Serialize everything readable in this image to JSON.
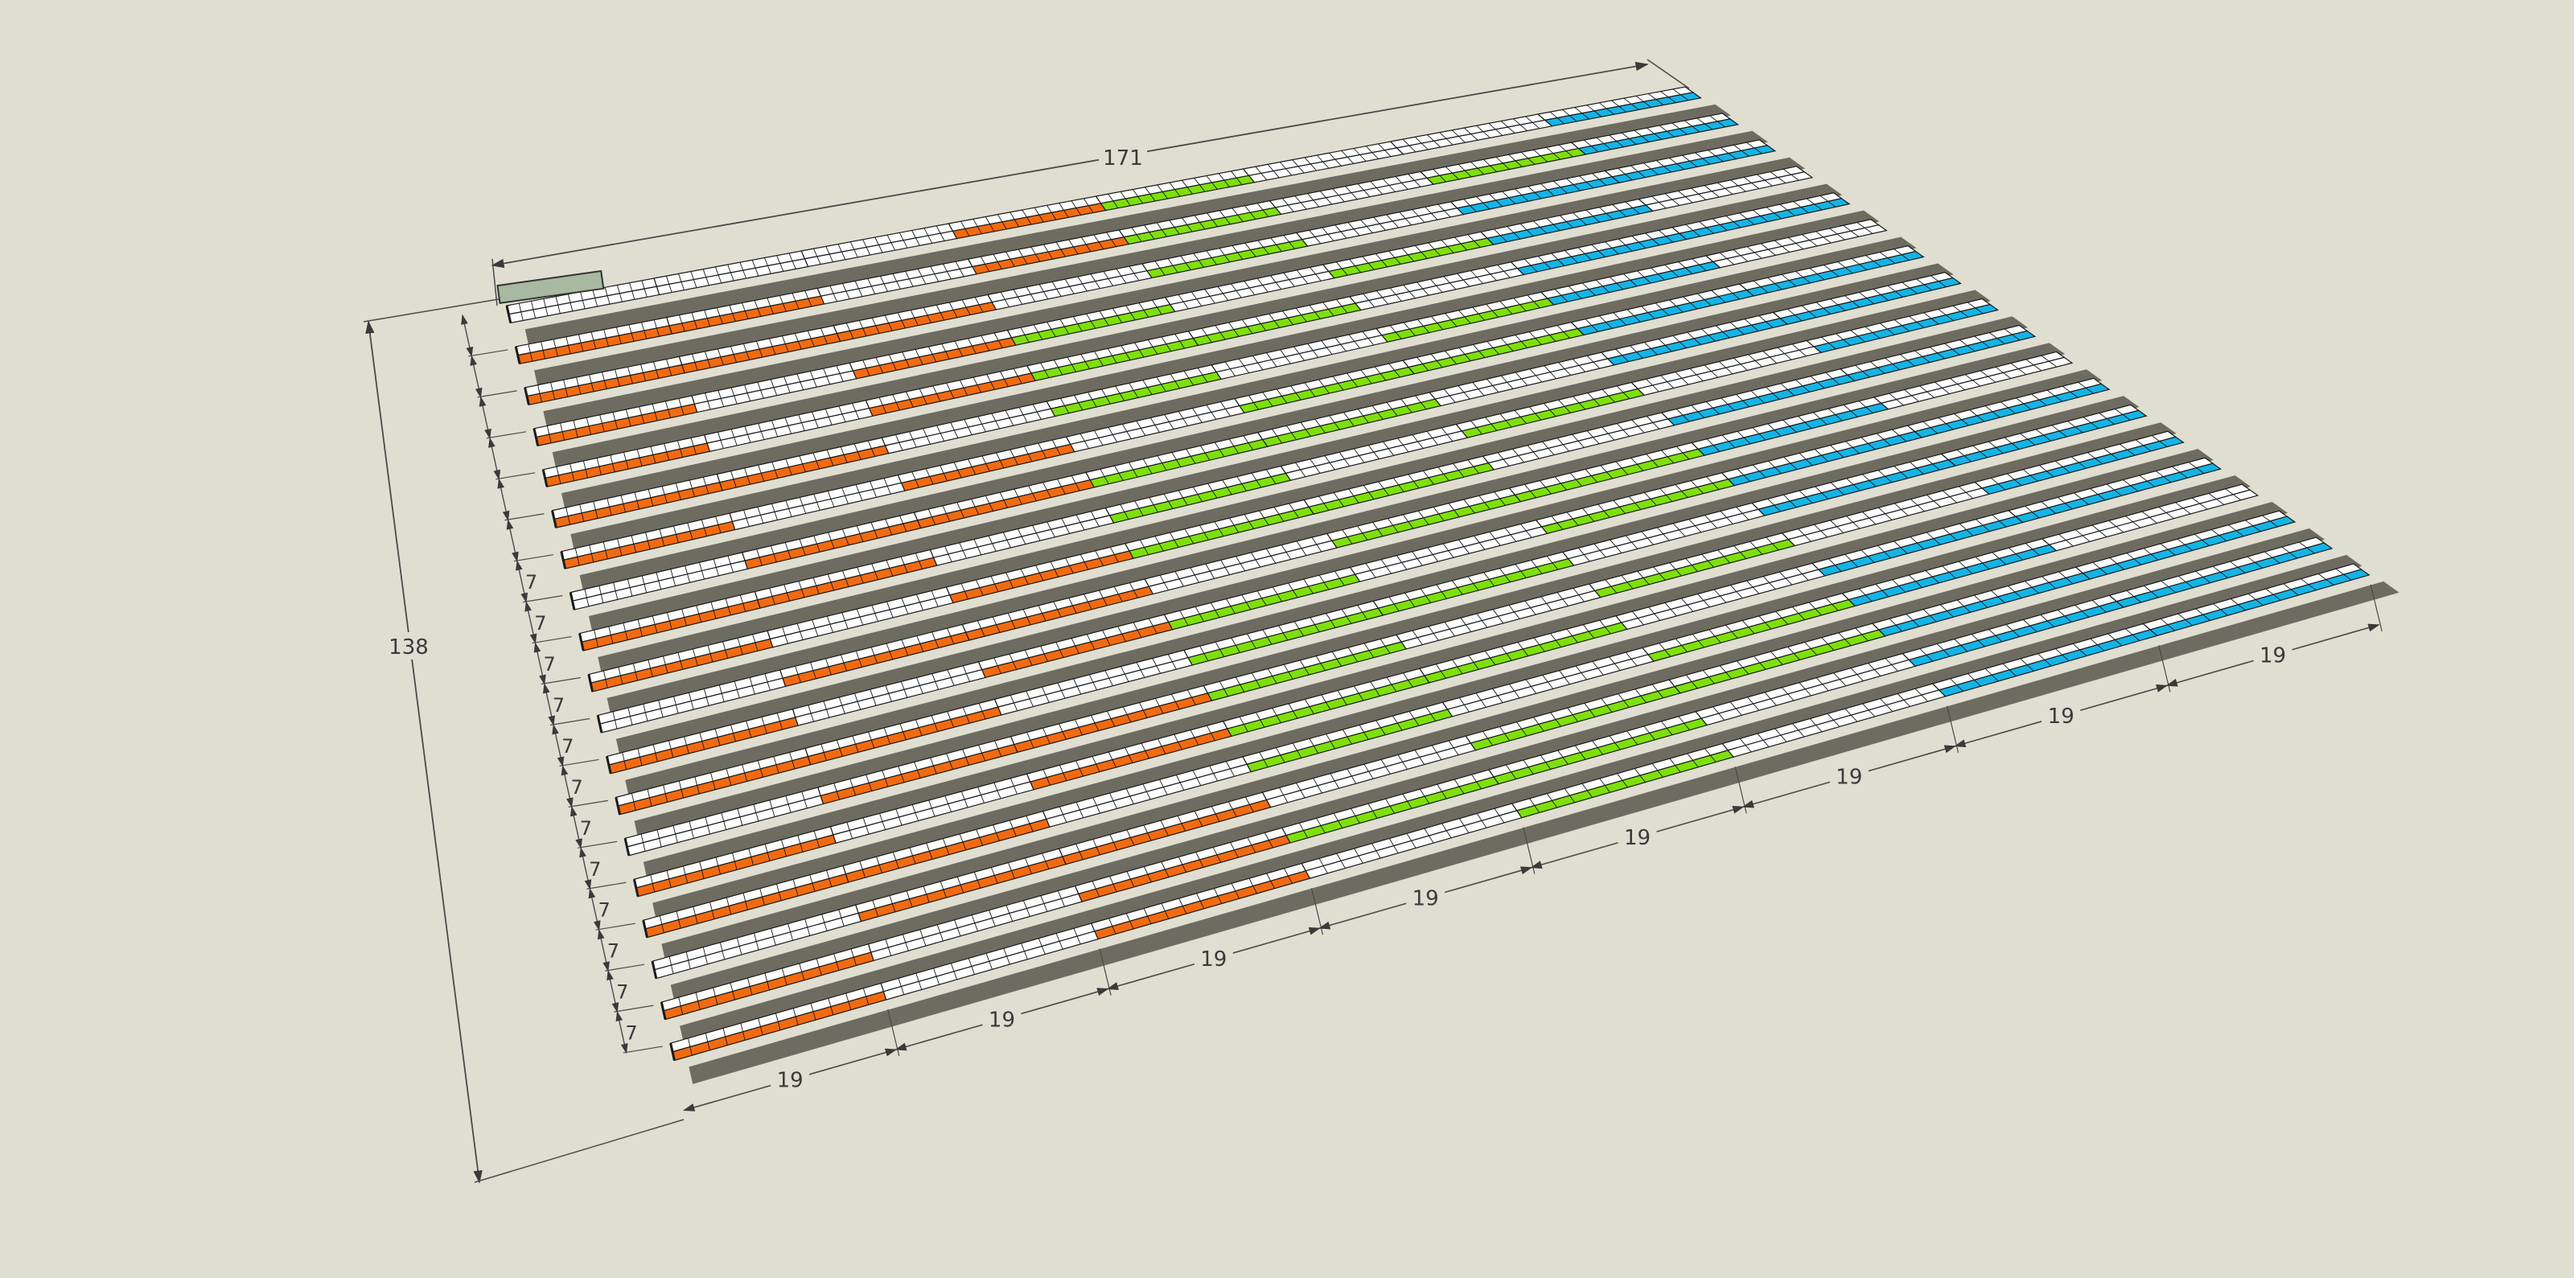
{
  "dimensions": {
    "overall_length": "171",
    "overall_width": "138",
    "row_pitch": "7",
    "segment_length": "19"
  },
  "layout": {
    "row_count": 19,
    "segments_per_row": 8,
    "cells_per_segment": 12,
    "rows": [
      {
        "segments": [
          "white",
          "white",
          "white",
          "orange",
          "green",
          "white",
          "white",
          "cyan"
        ]
      },
      {
        "segments": [
          "orange",
          "orange",
          "white",
          "orange",
          "green",
          "white",
          "green",
          "cyan"
        ]
      },
      {
        "segments": [
          "orange",
          "orange",
          "orange",
          "white",
          "green",
          "white",
          "cyan",
          "cyan"
        ]
      },
      {
        "segments": [
          "orange",
          "white",
          "orange",
          "green",
          "white",
          "green",
          "cyan",
          "white"
        ]
      },
      {
        "segments": [
          "orange",
          "white",
          "orange",
          "green",
          "green",
          "white",
          "cyan",
          "cyan"
        ]
      },
      {
        "segments": [
          "orange",
          "orange",
          "white",
          "green",
          "white",
          "green",
          "cyan",
          "white"
        ]
      },
      {
        "segments": [
          "orange",
          "white",
          "orange",
          "white",
          "green",
          "green",
          "cyan",
          "cyan"
        ]
      },
      {
        "segments": [
          "white",
          "orange",
          "orange",
          "green",
          "green",
          "white",
          "cyan",
          "cyan"
        ]
      },
      {
        "segments": [
          "orange",
          "orange",
          "white",
          "green",
          "white",
          "green",
          "white",
          "cyan"
        ]
      },
      {
        "segments": [
          "orange",
          "white",
          "orange",
          "green",
          "green",
          "white",
          "cyan",
          "cyan"
        ]
      },
      {
        "segments": [
          "white",
          "orange",
          "orange",
          "white",
          "green",
          "green",
          "cyan",
          "white"
        ]
      },
      {
        "segments": [
          "orange",
          "white",
          "orange",
          "green",
          "white",
          "green",
          "cyan",
          "cyan"
        ]
      },
      {
        "segments": [
          "orange",
          "orange",
          "white",
          "green",
          "green",
          "white",
          "cyan",
          "cyan"
        ]
      },
      {
        "segments": [
          "white",
          "orange",
          "orange",
          "green",
          "white",
          "green",
          "white",
          "cyan"
        ]
      },
      {
        "segments": [
          "orange",
          "white",
          "orange",
          "green",
          "green",
          "white",
          "cyan",
          "cyan"
        ]
      },
      {
        "segments": [
          "orange",
          "orange",
          "white",
          "green",
          "white",
          "green",
          "cyan",
          "white"
        ]
      },
      {
        "segments": [
          "white",
          "orange",
          "orange",
          "white",
          "green",
          "green",
          "cyan",
          "cyan"
        ]
      },
      {
        "segments": [
          "orange",
          "white",
          "orange",
          "green",
          "green",
          "white",
          "cyan",
          "cyan"
        ]
      },
      {
        "segments": [
          "orange",
          "white",
          "orange",
          "white",
          "green",
          "white",
          "cyan",
          "cyan"
        ]
      }
    ]
  },
  "colors": {
    "background": "#dfded0",
    "orange": "#f26a10",
    "green": "#7ee00a",
    "cyan": "#14b4e6",
    "white": "#ffffff",
    "shadow": "#6e6c60",
    "edge": "#1a1a1a",
    "dimension_line": "#4a4a4a",
    "marker_block": "#a7b9a0"
  }
}
